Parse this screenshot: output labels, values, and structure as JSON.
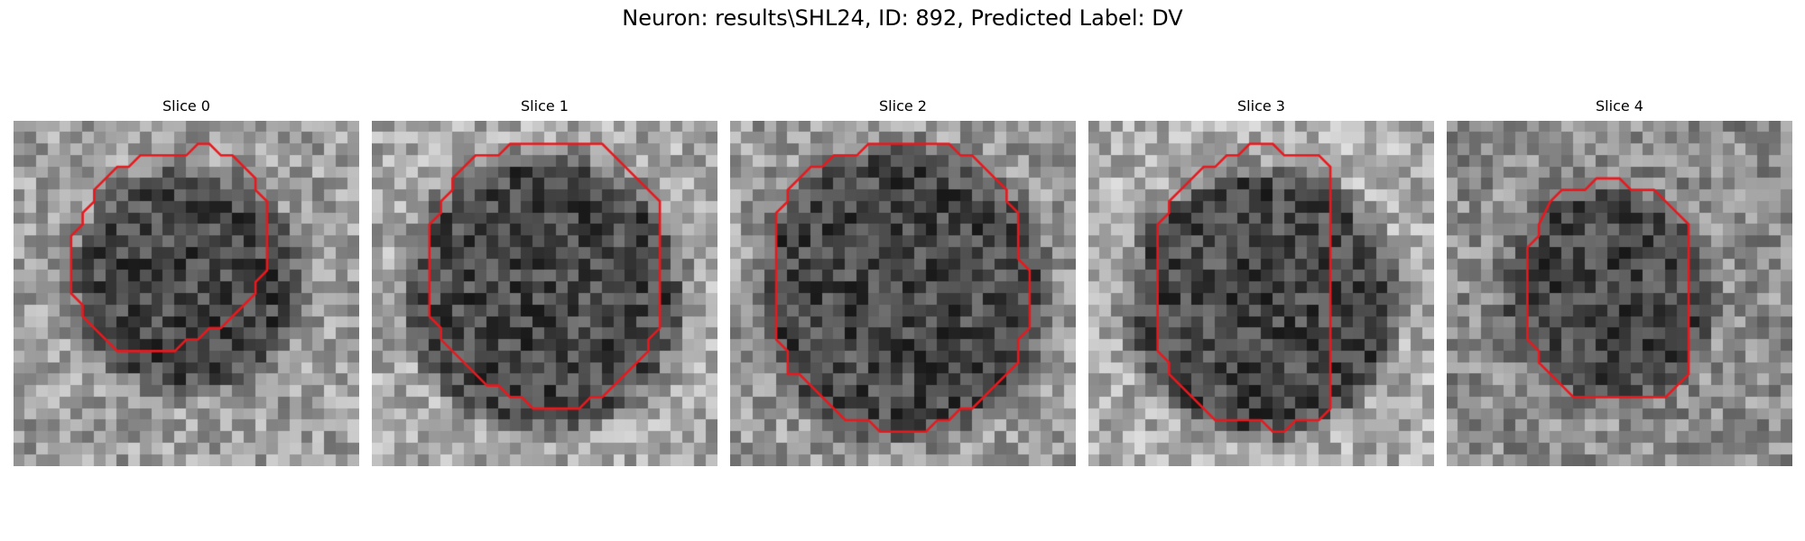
{
  "figure": {
    "title": "Neuron: results\\SHL24, ID: 892, Predicted Label: DV"
  },
  "slices": [
    {
      "label": "Slice 0",
      "seed": 11,
      "bg_brightness": 0.62,
      "center": [
        15.0,
        14.0
      ],
      "dark_radius": 8.5,
      "outline": [
        [
          9,
          4
        ],
        [
          10,
          4
        ],
        [
          11,
          3
        ],
        [
          12,
          3
        ],
        [
          13,
          3
        ],
        [
          14,
          3
        ],
        [
          15,
          3
        ],
        [
          16,
          2
        ],
        [
          17,
          2
        ],
        [
          18,
          3
        ],
        [
          19,
          3
        ],
        [
          20,
          4
        ],
        [
          21,
          5
        ],
        [
          21,
          6
        ],
        [
          22,
          7
        ],
        [
          22,
          8
        ],
        [
          22,
          9
        ],
        [
          22,
          10
        ],
        [
          22,
          11
        ],
        [
          22,
          12
        ],
        [
          22,
          13
        ],
        [
          21,
          14
        ],
        [
          21,
          15
        ],
        [
          20,
          16
        ],
        [
          19,
          17
        ],
        [
          18,
          18
        ],
        [
          17,
          18
        ],
        [
          16,
          19
        ],
        [
          15,
          19
        ],
        [
          14,
          20
        ],
        [
          13,
          20
        ],
        [
          12,
          20
        ],
        [
          11,
          20
        ],
        [
          10,
          20
        ],
        [
          9,
          20
        ],
        [
          8,
          19
        ],
        [
          7,
          18
        ],
        [
          6,
          17
        ],
        [
          6,
          16
        ],
        [
          5,
          15
        ],
        [
          5,
          14
        ],
        [
          5,
          13
        ],
        [
          5,
          12
        ],
        [
          5,
          11
        ],
        [
          5,
          10
        ],
        [
          6,
          9
        ],
        [
          6,
          8
        ],
        [
          7,
          7
        ],
        [
          7,
          6
        ],
        [
          8,
          5
        ]
      ],
      "outline_color": "#e8191e"
    },
    {
      "label": "Slice 1",
      "seed": 23,
      "bg_brightness": 0.66,
      "center": [
        15.0,
        15.0
      ],
      "dark_radius": 10.8,
      "outline": [
        [
          8,
          4
        ],
        [
          9,
          3
        ],
        [
          10,
          3
        ],
        [
          11,
          3
        ],
        [
          12,
          2
        ],
        [
          13,
          2
        ],
        [
          14,
          2
        ],
        [
          15,
          2
        ],
        [
          16,
          2
        ],
        [
          17,
          2
        ],
        [
          18,
          2
        ],
        [
          19,
          2
        ],
        [
          20,
          2
        ],
        [
          21,
          3
        ],
        [
          22,
          4
        ],
        [
          23,
          5
        ],
        [
          24,
          6
        ],
        [
          25,
          7
        ],
        [
          25,
          8
        ],
        [
          25,
          9
        ],
        [
          25,
          10
        ],
        [
          25,
          11
        ],
        [
          25,
          12
        ],
        [
          25,
          13
        ],
        [
          25,
          14
        ],
        [
          25,
          15
        ],
        [
          25,
          16
        ],
        [
          25,
          17
        ],
        [
          25,
          18
        ],
        [
          24,
          19
        ],
        [
          24,
          20
        ],
        [
          23,
          21
        ],
        [
          22,
          22
        ],
        [
          21,
          23
        ],
        [
          20,
          24
        ],
        [
          19,
          24
        ],
        [
          18,
          25
        ],
        [
          17,
          25
        ],
        [
          16,
          25
        ],
        [
          15,
          25
        ],
        [
          14,
          25
        ],
        [
          13,
          24
        ],
        [
          12,
          24
        ],
        [
          11,
          23
        ],
        [
          10,
          23
        ],
        [
          9,
          22
        ],
        [
          8,
          21
        ],
        [
          7,
          20
        ],
        [
          6,
          19
        ],
        [
          6,
          18
        ],
        [
          5,
          17
        ],
        [
          5,
          16
        ],
        [
          5,
          15
        ],
        [
          5,
          14
        ],
        [
          5,
          13
        ],
        [
          5,
          12
        ],
        [
          5,
          11
        ],
        [
          5,
          10
        ],
        [
          5,
          9
        ],
        [
          6,
          8
        ],
        [
          6,
          7
        ],
        [
          7,
          6
        ],
        [
          7,
          5
        ]
      ],
      "outline_color": "#e8191e"
    },
    {
      "label": "Slice 2",
      "seed": 37,
      "bg_brightness": 0.6,
      "center": [
        15.0,
        15.0
      ],
      "dark_radius": 11.5,
      "outline": [
        [
          7,
          4
        ],
        [
          8,
          4
        ],
        [
          9,
          3
        ],
        [
          10,
          3
        ],
        [
          11,
          3
        ],
        [
          12,
          2
        ],
        [
          13,
          2
        ],
        [
          14,
          2
        ],
        [
          15,
          2
        ],
        [
          16,
          2
        ],
        [
          17,
          2
        ],
        [
          18,
          2
        ],
        [
          19,
          2
        ],
        [
          20,
          3
        ],
        [
          21,
          3
        ],
        [
          22,
          4
        ],
        [
          23,
          5
        ],
        [
          24,
          6
        ],
        [
          24,
          7
        ],
        [
          25,
          8
        ],
        [
          25,
          9
        ],
        [
          25,
          10
        ],
        [
          25,
          11
        ],
        [
          25,
          12
        ],
        [
          26,
          13
        ],
        [
          26,
          14
        ],
        [
          26,
          15
        ],
        [
          26,
          16
        ],
        [
          26,
          17
        ],
        [
          26,
          18
        ],
        [
          25,
          19
        ],
        [
          25,
          20
        ],
        [
          25,
          21
        ],
        [
          24,
          22
        ],
        [
          23,
          23
        ],
        [
          22,
          24
        ],
        [
          21,
          25
        ],
        [
          20,
          25
        ],
        [
          19,
          26
        ],
        [
          18,
          26
        ],
        [
          17,
          27
        ],
        [
          16,
          27
        ],
        [
          15,
          27
        ],
        [
          14,
          27
        ],
        [
          13,
          27
        ],
        [
          12,
          26
        ],
        [
          11,
          26
        ],
        [
          10,
          26
        ],
        [
          9,
          25
        ],
        [
          8,
          24
        ],
        [
          7,
          23
        ],
        [
          6,
          22
        ],
        [
          5,
          22
        ],
        [
          5,
          21
        ],
        [
          5,
          20
        ],
        [
          4,
          19
        ],
        [
          4,
          18
        ],
        [
          4,
          17
        ],
        [
          4,
          16
        ],
        [
          4,
          15
        ],
        [
          4,
          14
        ],
        [
          4,
          13
        ],
        [
          4,
          12
        ],
        [
          4,
          11
        ],
        [
          4,
          10
        ],
        [
          4,
          9
        ],
        [
          4,
          8
        ],
        [
          5,
          7
        ],
        [
          5,
          6
        ],
        [
          6,
          5
        ]
      ],
      "outline_color": "#e8191e"
    },
    {
      "label": "Slice 3",
      "seed": 53,
      "bg_brightness": 0.68,
      "center": [
        15.0,
        16.0
      ],
      "dark_radius": 10.5,
      "outline": [
        [
          9,
          5
        ],
        [
          10,
          4
        ],
        [
          11,
          4
        ],
        [
          12,
          3
        ],
        [
          13,
          3
        ],
        [
          14,
          2
        ],
        [
          15,
          2
        ],
        [
          16,
          2
        ],
        [
          17,
          3
        ],
        [
          18,
          3
        ],
        [
          19,
          3
        ],
        [
          20,
          3
        ],
        [
          21,
          4
        ],
        [
          21,
          5
        ],
        [
          21,
          6
        ],
        [
          21,
          7
        ],
        [
          21,
          8
        ],
        [
          21,
          9
        ],
        [
          21,
          10
        ],
        [
          21,
          11
        ],
        [
          21,
          12
        ],
        [
          21,
          13
        ],
        [
          21,
          14
        ],
        [
          21,
          15
        ],
        [
          21,
          16
        ],
        [
          21,
          17
        ],
        [
          21,
          18
        ],
        [
          21,
          19
        ],
        [
          21,
          20
        ],
        [
          21,
          21
        ],
        [
          21,
          22
        ],
        [
          21,
          23
        ],
        [
          21,
          24
        ],
        [
          21,
          25
        ],
        [
          20,
          26
        ],
        [
          19,
          26
        ],
        [
          18,
          26
        ],
        [
          17,
          27
        ],
        [
          16,
          27
        ],
        [
          15,
          26
        ],
        [
          14,
          26
        ],
        [
          13,
          26
        ],
        [
          12,
          26
        ],
        [
          11,
          26
        ],
        [
          10,
          25
        ],
        [
          9,
          24
        ],
        [
          8,
          23
        ],
        [
          7,
          22
        ],
        [
          7,
          21
        ],
        [
          6,
          20
        ],
        [
          6,
          19
        ],
        [
          6,
          18
        ],
        [
          6,
          17
        ],
        [
          6,
          16
        ],
        [
          6,
          15
        ],
        [
          6,
          14
        ],
        [
          6,
          13
        ],
        [
          6,
          12
        ],
        [
          6,
          11
        ],
        [
          6,
          10
        ],
        [
          6,
          9
        ],
        [
          7,
          8
        ],
        [
          7,
          7
        ],
        [
          8,
          6
        ]
      ],
      "outline_color": "#e8191e"
    },
    {
      "label": "Slice 4",
      "seed": 71,
      "bg_brightness": 0.55,
      "center": [
        14.0,
        15.0
      ],
      "dark_radius": 7.8,
      "outline": [
        [
          9,
          7
        ],
        [
          10,
          6
        ],
        [
          11,
          6
        ],
        [
          12,
          6
        ],
        [
          13,
          5
        ],
        [
          14,
          5
        ],
        [
          15,
          5
        ],
        [
          16,
          6
        ],
        [
          17,
          6
        ],
        [
          18,
          6
        ],
        [
          19,
          7
        ],
        [
          20,
          8
        ],
        [
          21,
          9
        ],
        [
          21,
          10
        ],
        [
          21,
          11
        ],
        [
          21,
          12
        ],
        [
          21,
          13
        ],
        [
          21,
          14
        ],
        [
          21,
          15
        ],
        [
          21,
          16
        ],
        [
          21,
          17
        ],
        [
          21,
          18
        ],
        [
          21,
          19
        ],
        [
          21,
          20
        ],
        [
          21,
          21
        ],
        [
          21,
          22
        ],
        [
          20,
          23
        ],
        [
          19,
          24
        ],
        [
          18,
          24
        ],
        [
          17,
          24
        ],
        [
          16,
          24
        ],
        [
          15,
          24
        ],
        [
          14,
          24
        ],
        [
          13,
          24
        ],
        [
          12,
          24
        ],
        [
          11,
          24
        ],
        [
          10,
          23
        ],
        [
          9,
          22
        ],
        [
          8,
          21
        ],
        [
          8,
          20
        ],
        [
          7,
          19
        ],
        [
          7,
          18
        ],
        [
          7,
          17
        ],
        [
          7,
          16
        ],
        [
          7,
          15
        ],
        [
          7,
          14
        ],
        [
          7,
          13
        ],
        [
          7,
          12
        ],
        [
          7,
          11
        ],
        [
          8,
          10
        ],
        [
          8,
          9
        ]
      ],
      "outline_color": "#e8191e"
    }
  ]
}
